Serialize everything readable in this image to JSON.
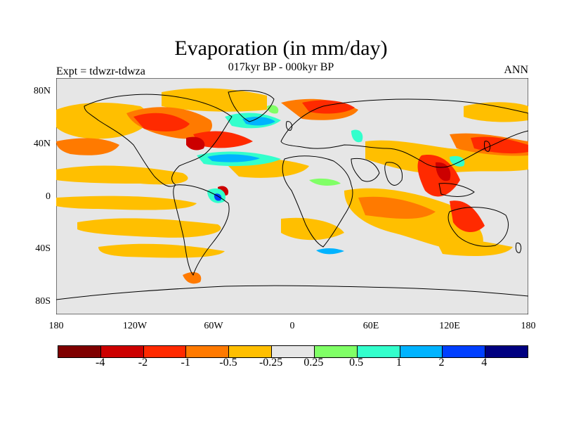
{
  "title": "Evaporation (in mm/day)",
  "subtitle": "017kyr BP - 000kyr BP",
  "expt_label": "Expt = tdwzr-tdwza",
  "season_label": "ANN",
  "lat_ticks": [
    "80N",
    "40N",
    "0",
    "40S",
    "80S"
  ],
  "lon_ticks": [
    "180",
    "120W",
    "60W",
    "0",
    "60E",
    "120E",
    "180"
  ],
  "colorbar": {
    "colors": [
      "#7f0000",
      "#cc0000",
      "#ff2a00",
      "#ff7a00",
      "#ffbf00",
      "#e6e6e6",
      "#80ff66",
      "#33ffcc",
      "#00b3ff",
      "#0040ff",
      "#000080"
    ],
    "labels": [
      "-4",
      "-2",
      "-1",
      "-0.5",
      "-0.25",
      "0.25",
      "0.5",
      "1",
      "2",
      "4"
    ]
  },
  "map_background": "#e6e6e6"
}
